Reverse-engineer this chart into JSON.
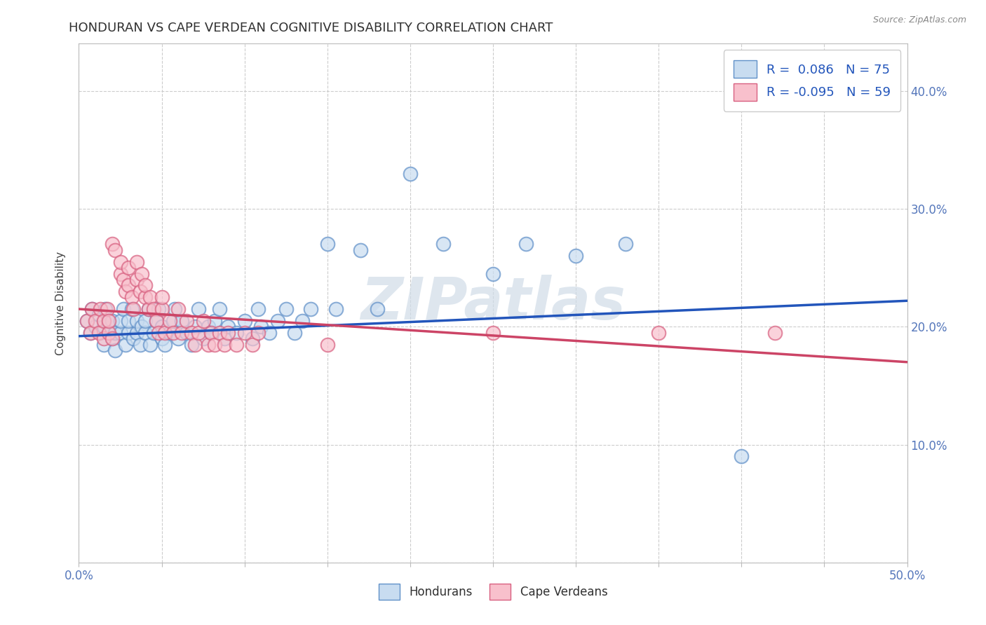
{
  "title": "HONDURAN VS CAPE VERDEAN COGNITIVE DISABILITY CORRELATION CHART",
  "source": "Source: ZipAtlas.com",
  "ylabel": "Cognitive Disability",
  "xlim": [
    0.0,
    0.5
  ],
  "ylim": [
    0.0,
    0.44
  ],
  "xticks": [
    0.0,
    0.05,
    0.1,
    0.15,
    0.2,
    0.25,
    0.3,
    0.35,
    0.4,
    0.45,
    0.5
  ],
  "xticklabels": [
    "0.0%",
    "",
    "",
    "",
    "",
    "",
    "",
    "",
    "",
    "",
    "50.0%"
  ],
  "yticks": [
    0.0,
    0.1,
    0.2,
    0.3,
    0.4
  ],
  "yticklabels_right": [
    "",
    "10.0%",
    "20.0%",
    "30.0%",
    "40.0%"
  ],
  "blue_R": 0.086,
  "blue_N": 75,
  "pink_R": -0.095,
  "pink_N": 59,
  "blue_face_color": "#c8dcf0",
  "blue_edge_color": "#6090c8",
  "pink_face_color": "#f8c0cc",
  "pink_edge_color": "#d86080",
  "blue_line_color": "#2255bb",
  "pink_line_color": "#cc4466",
  "watermark": "ZIPatlas",
  "blue_scatter": [
    [
      0.005,
      0.205
    ],
    [
      0.007,
      0.195
    ],
    [
      0.008,
      0.215
    ],
    [
      0.01,
      0.2
    ],
    [
      0.012,
      0.21
    ],
    [
      0.013,
      0.195
    ],
    [
      0.015,
      0.185
    ],
    [
      0.015,
      0.2
    ],
    [
      0.016,
      0.215
    ],
    [
      0.018,
      0.195
    ],
    [
      0.018,
      0.205
    ],
    [
      0.02,
      0.19
    ],
    [
      0.02,
      0.205
    ],
    [
      0.022,
      0.195
    ],
    [
      0.022,
      0.18
    ],
    [
      0.025,
      0.195
    ],
    [
      0.025,
      0.205
    ],
    [
      0.027,
      0.215
    ],
    [
      0.028,
      0.185
    ],
    [
      0.03,
      0.195
    ],
    [
      0.03,
      0.205
    ],
    [
      0.032,
      0.215
    ],
    [
      0.033,
      0.19
    ],
    [
      0.035,
      0.195
    ],
    [
      0.035,
      0.205
    ],
    [
      0.037,
      0.185
    ],
    [
      0.038,
      0.2
    ],
    [
      0.04,
      0.195
    ],
    [
      0.04,
      0.205
    ],
    [
      0.042,
      0.215
    ],
    [
      0.043,
      0.185
    ],
    [
      0.045,
      0.195
    ],
    [
      0.047,
      0.205
    ],
    [
      0.048,
      0.215
    ],
    [
      0.05,
      0.19
    ],
    [
      0.05,
      0.2
    ],
    [
      0.052,
      0.185
    ],
    [
      0.055,
      0.195
    ],
    [
      0.057,
      0.205
    ],
    [
      0.058,
      0.215
    ],
    [
      0.06,
      0.19
    ],
    [
      0.062,
      0.205
    ],
    [
      0.065,
      0.195
    ],
    [
      0.068,
      0.185
    ],
    [
      0.07,
      0.2
    ],
    [
      0.072,
      0.215
    ],
    [
      0.075,
      0.19
    ],
    [
      0.078,
      0.2
    ],
    [
      0.08,
      0.195
    ],
    [
      0.082,
      0.205
    ],
    [
      0.085,
      0.215
    ],
    [
      0.088,
      0.19
    ],
    [
      0.09,
      0.2
    ],
    [
      0.095,
      0.195
    ],
    [
      0.1,
      0.205
    ],
    [
      0.105,
      0.19
    ],
    [
      0.108,
      0.215
    ],
    [
      0.11,
      0.2
    ],
    [
      0.115,
      0.195
    ],
    [
      0.12,
      0.205
    ],
    [
      0.125,
      0.215
    ],
    [
      0.13,
      0.195
    ],
    [
      0.135,
      0.205
    ],
    [
      0.14,
      0.215
    ],
    [
      0.15,
      0.27
    ],
    [
      0.155,
      0.215
    ],
    [
      0.17,
      0.265
    ],
    [
      0.18,
      0.215
    ],
    [
      0.2,
      0.33
    ],
    [
      0.22,
      0.27
    ],
    [
      0.25,
      0.245
    ],
    [
      0.27,
      0.27
    ],
    [
      0.3,
      0.26
    ],
    [
      0.33,
      0.27
    ],
    [
      0.4,
      0.09
    ]
  ],
  "pink_scatter": [
    [
      0.005,
      0.205
    ],
    [
      0.007,
      0.195
    ],
    [
      0.008,
      0.215
    ],
    [
      0.01,
      0.205
    ],
    [
      0.012,
      0.195
    ],
    [
      0.013,
      0.215
    ],
    [
      0.015,
      0.19
    ],
    [
      0.015,
      0.205
    ],
    [
      0.017,
      0.215
    ],
    [
      0.018,
      0.195
    ],
    [
      0.018,
      0.205
    ],
    [
      0.02,
      0.19
    ],
    [
      0.02,
      0.27
    ],
    [
      0.022,
      0.265
    ],
    [
      0.025,
      0.245
    ],
    [
      0.025,
      0.255
    ],
    [
      0.027,
      0.24
    ],
    [
      0.028,
      0.23
    ],
    [
      0.03,
      0.25
    ],
    [
      0.03,
      0.235
    ],
    [
      0.032,
      0.225
    ],
    [
      0.033,
      0.215
    ],
    [
      0.035,
      0.24
    ],
    [
      0.035,
      0.255
    ],
    [
      0.037,
      0.23
    ],
    [
      0.038,
      0.245
    ],
    [
      0.04,
      0.225
    ],
    [
      0.04,
      0.235
    ],
    [
      0.042,
      0.215
    ],
    [
      0.043,
      0.225
    ],
    [
      0.045,
      0.215
    ],
    [
      0.047,
      0.205
    ],
    [
      0.048,
      0.195
    ],
    [
      0.05,
      0.215
    ],
    [
      0.05,
      0.225
    ],
    [
      0.052,
      0.195
    ],
    [
      0.055,
      0.205
    ],
    [
      0.057,
      0.195
    ],
    [
      0.06,
      0.215
    ],
    [
      0.062,
      0.195
    ],
    [
      0.065,
      0.205
    ],
    [
      0.068,
      0.195
    ],
    [
      0.07,
      0.185
    ],
    [
      0.072,
      0.195
    ],
    [
      0.075,
      0.205
    ],
    [
      0.078,
      0.185
    ],
    [
      0.08,
      0.195
    ],
    [
      0.082,
      0.185
    ],
    [
      0.085,
      0.195
    ],
    [
      0.088,
      0.185
    ],
    [
      0.09,
      0.195
    ],
    [
      0.095,
      0.185
    ],
    [
      0.1,
      0.195
    ],
    [
      0.105,
      0.185
    ],
    [
      0.108,
      0.195
    ],
    [
      0.15,
      0.185
    ],
    [
      0.25,
      0.195
    ],
    [
      0.35,
      0.195
    ],
    [
      0.42,
      0.195
    ]
  ],
  "blue_line_x": [
    0.0,
    0.5
  ],
  "blue_line_y": [
    0.192,
    0.222
  ],
  "pink_line_x": [
    0.0,
    0.5
  ],
  "pink_line_y": [
    0.215,
    0.17
  ],
  "background_color": "#ffffff",
  "grid_color": "#cccccc",
  "title_color": "#303030",
  "axis_label_color": "#404040",
  "tick_color": "#5577bb",
  "watermark_color": "#d0dce8",
  "watermark_alpha": 0.7
}
